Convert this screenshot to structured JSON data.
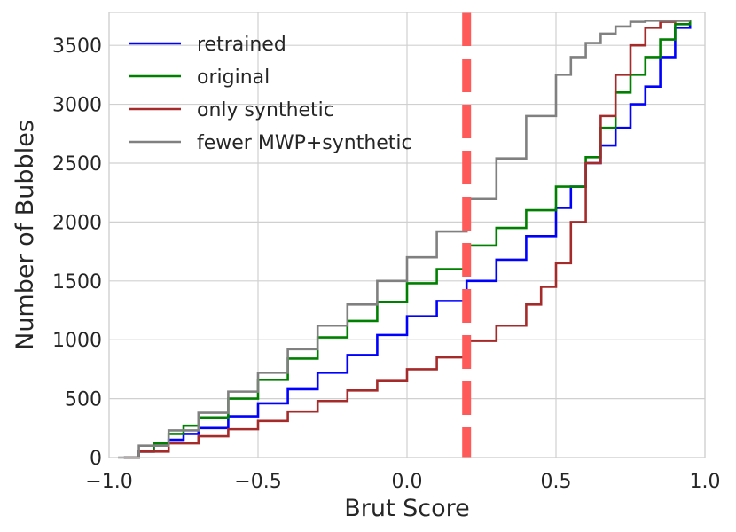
{
  "chart_data": {
    "type": "line",
    "title": "",
    "xlabel": "Brut Score",
    "ylabel": "Number of Bubbles",
    "xlim": [
      -1.0,
      1.0
    ],
    "ylim": [
      0,
      3780
    ],
    "xticks": [
      -1.0,
      -0.5,
      0.0,
      0.5,
      1.0
    ],
    "xtick_labels": [
      "−1.0",
      "−0.5",
      "0.0",
      "0.5",
      "1.0"
    ],
    "yticks": [
      0,
      500,
      1000,
      1500,
      2000,
      2500,
      3000,
      3500
    ],
    "ytick_labels": [
      "0",
      "500",
      "1000",
      "1500",
      "2000",
      "2500",
      "3000",
      "3500"
    ],
    "grid": true,
    "legend_position": "top-left",
    "vline": {
      "x": 0.2,
      "color": "#ff5a5a",
      "style": "dashed"
    },
    "series": [
      {
        "name": "retrained",
        "color": "#0000ff",
        "x": [
          -0.95,
          -0.9,
          -0.85,
          -0.8,
          -0.75,
          -0.7,
          -0.6,
          -0.5,
          -0.4,
          -0.3,
          -0.2,
          -0.1,
          0.0,
          0.1,
          0.2,
          0.3,
          0.4,
          0.5,
          0.55,
          0.6,
          0.65,
          0.7,
          0.75,
          0.8,
          0.85,
          0.9,
          0.95
        ],
        "values": [
          0,
          50,
          100,
          150,
          200,
          250,
          350,
          460,
          580,
          720,
          870,
          1040,
          1200,
          1330,
          1500,
          1680,
          1880,
          2120,
          2300,
          2500,
          2650,
          2800,
          3000,
          3150,
          3400,
          3650,
          3710
        ]
      },
      {
        "name": "original",
        "color": "#008000",
        "x": [
          -0.95,
          -0.9,
          -0.85,
          -0.8,
          -0.75,
          -0.7,
          -0.6,
          -0.5,
          -0.4,
          -0.3,
          -0.2,
          -0.1,
          0.0,
          0.1,
          0.2,
          0.3,
          0.4,
          0.5,
          0.6,
          0.65,
          0.7,
          0.75,
          0.8,
          0.85,
          0.9,
          0.95
        ],
        "values": [
          0,
          50,
          120,
          200,
          270,
          340,
          500,
          660,
          840,
          1020,
          1160,
          1320,
          1480,
          1600,
          1800,
          1950,
          2100,
          2300,
          2550,
          2800,
          3100,
          3250,
          3400,
          3550,
          3680,
          3710
        ]
      },
      {
        "name": "only synthetic",
        "color": "#a52a2a",
        "x": [
          -0.95,
          -0.9,
          -0.8,
          -0.7,
          -0.6,
          -0.5,
          -0.4,
          -0.3,
          -0.2,
          -0.1,
          0.0,
          0.1,
          0.2,
          0.3,
          0.4,
          0.45,
          0.5,
          0.55,
          0.6,
          0.65,
          0.7,
          0.75,
          0.8,
          0.85,
          0.9,
          0.95
        ],
        "values": [
          0,
          50,
          120,
          180,
          240,
          310,
          390,
          480,
          570,
          650,
          750,
          850,
          990,
          1120,
          1300,
          1450,
          1650,
          2000,
          2500,
          2900,
          3250,
          3500,
          3650,
          3700,
          3710,
          3710
        ]
      },
      {
        "name": "fewer MWP+synthetic",
        "color": "#808080",
        "x": [
          -0.97,
          -0.9,
          -0.8,
          -0.7,
          -0.6,
          -0.5,
          -0.4,
          -0.3,
          -0.2,
          -0.1,
          0.0,
          0.1,
          0.2,
          0.3,
          0.4,
          0.5,
          0.55,
          0.6,
          0.65,
          0.7,
          0.75,
          0.8,
          0.85,
          0.9,
          0.95
        ],
        "values": [
          0,
          100,
          230,
          380,
          560,
          720,
          920,
          1120,
          1300,
          1500,
          1700,
          1920,
          2200,
          2540,
          2900,
          3250,
          3400,
          3520,
          3600,
          3660,
          3700,
          3710,
          3710,
          3710,
          3710
        ]
      }
    ]
  }
}
